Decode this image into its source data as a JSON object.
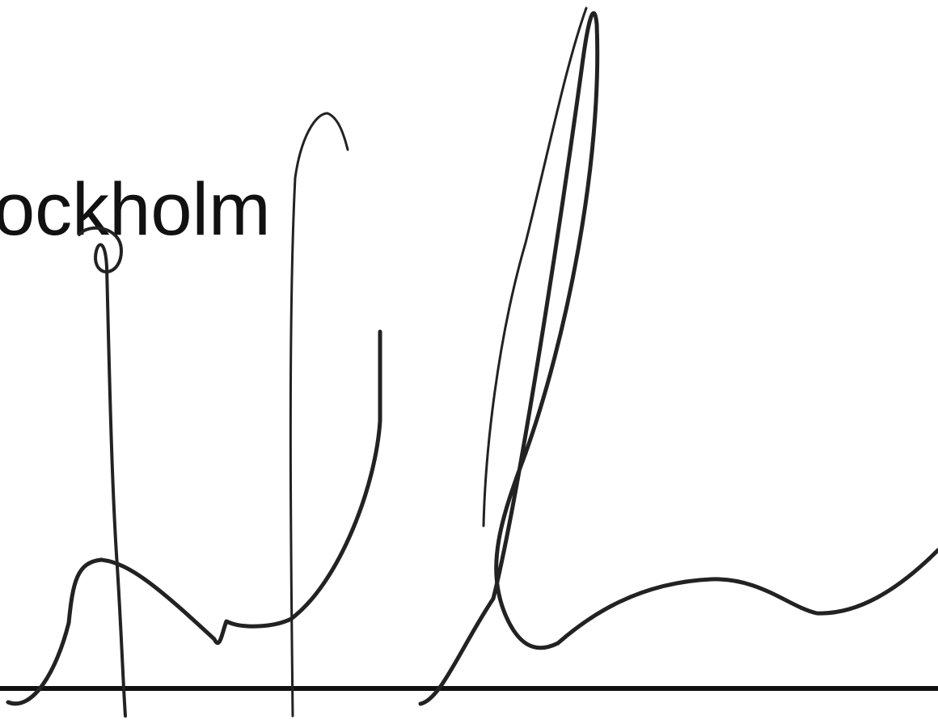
{
  "text": "ockholm"
}
